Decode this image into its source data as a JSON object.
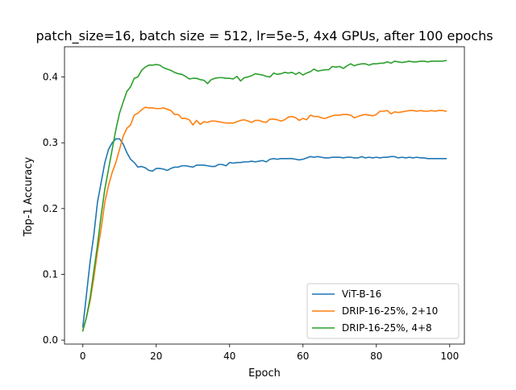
{
  "chart_data": {
    "type": "line",
    "title": "patch_size=16, batch size = 512, lr=5e-5, 4x4 GPUs, after 100 epochs",
    "xlabel": "Epoch",
    "ylabel": "Top-1 Accuracy",
    "xlim": [
      -5,
      104
    ],
    "ylim": [
      -0.006,
      0.446
    ],
    "xticks": [
      0,
      20,
      40,
      60,
      80,
      100
    ],
    "xtick_labels": [
      "0",
      "20",
      "40",
      "60",
      "80",
      "100"
    ],
    "yticks": [
      0.0,
      0.1,
      0.2,
      0.3,
      0.4
    ],
    "ytick_labels": [
      "0.0",
      "0.1",
      "0.2",
      "0.3",
      "0.4"
    ],
    "grid": false,
    "legend_position": "lower-right",
    "series": [
      {
        "name": "ViT-B-16",
        "color": "#1f77b4",
        "x": [
          0,
          1,
          2,
          3,
          4,
          5,
          6,
          7,
          8,
          9,
          10,
          11,
          12,
          13,
          14,
          15,
          16,
          17,
          18,
          19,
          20,
          21,
          22,
          23,
          24,
          25,
          26,
          27,
          28,
          29,
          30,
          31,
          32,
          33,
          34,
          35,
          36,
          37,
          38,
          39,
          40,
          41,
          42,
          43,
          44,
          45,
          46,
          47,
          48,
          49,
          50,
          51,
          52,
          53,
          54,
          55,
          56,
          57,
          58,
          59,
          60,
          61,
          62,
          63,
          64,
          65,
          66,
          67,
          68,
          69,
          70,
          71,
          72,
          73,
          74,
          75,
          76,
          77,
          78,
          79,
          80,
          81,
          82,
          83,
          84,
          85,
          86,
          87,
          88,
          89,
          90,
          91,
          92,
          93,
          94,
          95,
          96,
          97,
          98,
          99
        ],
        "y": [
          0.02,
          0.07,
          0.12,
          0.16,
          0.21,
          0.24,
          0.27,
          0.29,
          0.3,
          0.306,
          0.306,
          0.298,
          0.285,
          0.275,
          0.27,
          0.263,
          0.264,
          0.262,
          0.258,
          0.257,
          0.261,
          0.261,
          0.26,
          0.258,
          0.261,
          0.263,
          0.263,
          0.265,
          0.265,
          0.264,
          0.263,
          0.266,
          0.266,
          0.266,
          0.265,
          0.264,
          0.264,
          0.267,
          0.267,
          0.265,
          0.27,
          0.269,
          0.27,
          0.27,
          0.271,
          0.271,
          0.272,
          0.271,
          0.272,
          0.273,
          0.271,
          0.275,
          0.276,
          0.275,
          0.276,
          0.276,
          0.276,
          0.276,
          0.275,
          0.274,
          0.275,
          0.277,
          0.279,
          0.278,
          0.279,
          0.278,
          0.277,
          0.277,
          0.278,
          0.278,
          0.278,
          0.277,
          0.278,
          0.278,
          0.277,
          0.277,
          0.279,
          0.277,
          0.278,
          0.277,
          0.278,
          0.277,
          0.278,
          0.278,
          0.279,
          0.279,
          0.277,
          0.278,
          0.277,
          0.278,
          0.277,
          0.278,
          0.277,
          0.277,
          0.276,
          0.276,
          0.276,
          0.276,
          0.276,
          0.276
        ]
      },
      {
        "name": "DRIP-16-25%, 2+10",
        "color": "#ff7f0e",
        "x": [
          0,
          1,
          2,
          3,
          4,
          5,
          6,
          7,
          8,
          9,
          10,
          11,
          12,
          13,
          14,
          15,
          16,
          17,
          18,
          19,
          20,
          21,
          22,
          23,
          24,
          25,
          26,
          27,
          28,
          29,
          30,
          31,
          32,
          33,
          34,
          35,
          36,
          37,
          38,
          39,
          40,
          41,
          42,
          43,
          44,
          45,
          46,
          47,
          48,
          49,
          50,
          51,
          52,
          53,
          54,
          55,
          56,
          57,
          58,
          59,
          60,
          61,
          62,
          63,
          64,
          65,
          66,
          67,
          68,
          69,
          70,
          71,
          72,
          73,
          74,
          75,
          76,
          77,
          78,
          79,
          80,
          81,
          82,
          83,
          84,
          85,
          86,
          87,
          88,
          89,
          90,
          91,
          92,
          93,
          94,
          95,
          96,
          97,
          98,
          99
        ],
        "y": [
          0.015,
          0.035,
          0.06,
          0.095,
          0.135,
          0.17,
          0.21,
          0.235,
          0.255,
          0.27,
          0.29,
          0.31,
          0.322,
          0.327,
          0.342,
          0.345,
          0.35,
          0.354,
          0.353,
          0.353,
          0.352,
          0.352,
          0.353,
          0.351,
          0.349,
          0.343,
          0.343,
          0.337,
          0.337,
          0.335,
          0.327,
          0.334,
          0.328,
          0.332,
          0.331,
          0.333,
          0.333,
          0.332,
          0.331,
          0.33,
          0.33,
          0.33,
          0.332,
          0.334,
          0.335,
          0.333,
          0.331,
          0.334,
          0.334,
          0.332,
          0.331,
          0.336,
          0.336,
          0.335,
          0.333,
          0.335,
          0.339,
          0.34,
          0.338,
          0.334,
          0.337,
          0.335,
          0.342,
          0.34,
          0.34,
          0.338,
          0.337,
          0.339,
          0.341,
          0.342,
          0.342,
          0.343,
          0.343,
          0.342,
          0.338,
          0.34,
          0.342,
          0.343,
          0.342,
          0.341,
          0.343,
          0.348,
          0.348,
          0.349,
          0.344,
          0.347,
          0.346,
          0.347,
          0.348,
          0.349,
          0.349,
          0.348,
          0.349,
          0.348,
          0.348,
          0.349,
          0.348,
          0.349,
          0.349,
          0.348
        ]
      },
      {
        "name": "DRIP-16-25%, 4+8",
        "color": "#2ca02c",
        "x": [
          0,
          1,
          2,
          3,
          4,
          5,
          6,
          7,
          8,
          9,
          10,
          11,
          12,
          13,
          14,
          15,
          16,
          17,
          18,
          19,
          20,
          21,
          22,
          23,
          24,
          25,
          26,
          27,
          28,
          29,
          30,
          31,
          32,
          33,
          34,
          35,
          36,
          37,
          38,
          39,
          40,
          41,
          42,
          43,
          44,
          45,
          46,
          47,
          48,
          49,
          50,
          51,
          52,
          53,
          54,
          55,
          56,
          57,
          58,
          59,
          60,
          61,
          62,
          63,
          64,
          65,
          66,
          67,
          68,
          69,
          70,
          71,
          72,
          73,
          74,
          75,
          76,
          77,
          78,
          79,
          80,
          81,
          82,
          83,
          84,
          85,
          86,
          87,
          88,
          89,
          90,
          91,
          92,
          93,
          94,
          95,
          96,
          97,
          98,
          99
        ],
        "y": [
          0.014,
          0.035,
          0.065,
          0.105,
          0.145,
          0.19,
          0.23,
          0.26,
          0.29,
          0.32,
          0.345,
          0.362,
          0.378,
          0.385,
          0.398,
          0.4,
          0.41,
          0.415,
          0.418,
          0.418,
          0.419,
          0.418,
          0.414,
          0.412,
          0.41,
          0.407,
          0.405,
          0.404,
          0.401,
          0.397,
          0.398,
          0.398,
          0.396,
          0.395,
          0.39,
          0.396,
          0.398,
          0.399,
          0.399,
          0.398,
          0.398,
          0.397,
          0.401,
          0.394,
          0.399,
          0.4,
          0.402,
          0.405,
          0.404,
          0.403,
          0.401,
          0.4,
          0.406,
          0.404,
          0.405,
          0.407,
          0.406,
          0.407,
          0.404,
          0.407,
          0.403,
          0.406,
          0.408,
          0.412,
          0.409,
          0.41,
          0.411,
          0.411,
          0.416,
          0.415,
          0.416,
          0.413,
          0.417,
          0.42,
          0.417,
          0.419,
          0.42,
          0.42,
          0.418,
          0.42,
          0.42,
          0.421,
          0.421,
          0.423,
          0.421,
          0.424,
          0.423,
          0.422,
          0.423,
          0.424,
          0.423,
          0.423,
          0.424,
          0.424,
          0.423,
          0.424,
          0.424,
          0.424,
          0.424,
          0.425
        ]
      }
    ]
  }
}
